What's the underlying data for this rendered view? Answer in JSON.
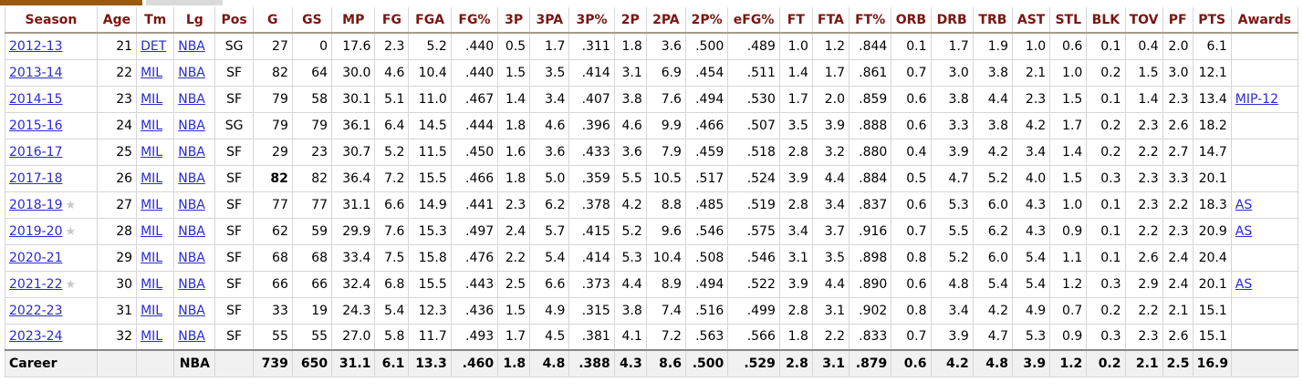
{
  "headers": [
    "Season",
    "Age",
    "Tm",
    "Lg",
    "Pos",
    "G",
    "GS",
    "MP",
    "FG",
    "FGA",
    "FG%",
    "3P",
    "3PA",
    "3P%",
    "2P",
    "2PA",
    "2P%",
    "eFG%",
    "FT",
    "FTA",
    "FT%",
    "ORB",
    "DRB",
    "TRB",
    "AST",
    "STL",
    "BLK",
    "TOV",
    "PF",
    "PTS",
    "Awards"
  ],
  "rows": [
    {
      "season": "2012-13",
      "star": false,
      "age": "21",
      "tm": "DET",
      "lg": "NBA",
      "pos": "SG",
      "stats": [
        "27",
        "0",
        "17.6",
        "2.3",
        "5.2",
        ".440",
        "0.5",
        "1.7",
        ".311",
        "1.8",
        "3.6",
        ".500",
        ".489",
        "1.0",
        "1.2",
        ".844",
        "0.1",
        "1.7",
        "1.9",
        "1.0",
        "0.6",
        "0.1",
        "0.4",
        "2.0",
        "6.1"
      ],
      "awards": ""
    },
    {
      "season": "2013-14",
      "star": false,
      "age": "22",
      "tm": "MIL",
      "lg": "NBA",
      "pos": "SF",
      "stats": [
        "82",
        "64",
        "30.0",
        "4.6",
        "10.4",
        ".440",
        "1.5",
        "3.5",
        ".414",
        "3.1",
        "6.9",
        ".454",
        ".511",
        "1.4",
        "1.7",
        ".861",
        "0.7",
        "3.0",
        "3.8",
        "2.1",
        "1.0",
        "0.2",
        "1.5",
        "3.0",
        "12.1"
      ],
      "awards": ""
    },
    {
      "season": "2014-15",
      "star": false,
      "age": "23",
      "tm": "MIL",
      "lg": "NBA",
      "pos": "SF",
      "stats": [
        "79",
        "58",
        "30.1",
        "5.1",
        "11.0",
        ".467",
        "1.4",
        "3.4",
        ".407",
        "3.8",
        "7.6",
        ".494",
        ".530",
        "1.7",
        "2.0",
        ".859",
        "0.6",
        "3.8",
        "4.4",
        "2.3",
        "1.5",
        "0.1",
        "1.4",
        "2.3",
        "13.4"
      ],
      "awards": "MIP-12"
    },
    {
      "season": "2015-16",
      "star": false,
      "age": "24",
      "tm": "MIL",
      "lg": "NBA",
      "pos": "SG",
      "stats": [
        "79",
        "79",
        "36.1",
        "6.4",
        "14.5",
        ".444",
        "1.8",
        "4.6",
        ".396",
        "4.6",
        "9.9",
        ".466",
        ".507",
        "3.5",
        "3.9",
        ".888",
        "0.6",
        "3.3",
        "3.8",
        "4.2",
        "1.7",
        "0.2",
        "2.3",
        "2.6",
        "18.2"
      ],
      "awards": ""
    },
    {
      "season": "2016-17",
      "star": false,
      "age": "25",
      "tm": "MIL",
      "lg": "NBA",
      "pos": "SF",
      "stats": [
        "29",
        "23",
        "30.7",
        "5.2",
        "11.5",
        ".450",
        "1.6",
        "3.6",
        ".433",
        "3.6",
        "7.9",
        ".459",
        ".518",
        "2.8",
        "3.2",
        ".880",
        "0.4",
        "3.9",
        "4.2",
        "3.4",
        "1.4",
        "0.2",
        "2.2",
        "2.7",
        "14.7"
      ],
      "awards": ""
    },
    {
      "season": "2017-18",
      "star": false,
      "age": "26",
      "tm": "MIL",
      "lg": "NBA",
      "pos": "SF",
      "boldG": true,
      "stats": [
        "82",
        "82",
        "36.4",
        "7.2",
        "15.5",
        ".466",
        "1.8",
        "5.0",
        ".359",
        "5.5",
        "10.5",
        ".517",
        ".524",
        "3.9",
        "4.4",
        ".884",
        "0.5",
        "4.7",
        "5.2",
        "4.0",
        "1.5",
        "0.3",
        "2.3",
        "3.3",
        "20.1"
      ],
      "awards": ""
    },
    {
      "season": "2018-19",
      "star": true,
      "age": "27",
      "tm": "MIL",
      "lg": "NBA",
      "pos": "SF",
      "stats": [
        "77",
        "77",
        "31.1",
        "6.6",
        "14.9",
        ".441",
        "2.3",
        "6.2",
        ".378",
        "4.2",
        "8.8",
        ".485",
        ".519",
        "2.8",
        "3.4",
        ".837",
        "0.6",
        "5.3",
        "6.0",
        "4.3",
        "1.0",
        "0.1",
        "2.3",
        "2.2",
        "18.3"
      ],
      "awards": "AS"
    },
    {
      "season": "2019-20",
      "star": true,
      "age": "28",
      "tm": "MIL",
      "lg": "NBA",
      "pos": "SF",
      "stats": [
        "62",
        "59",
        "29.9",
        "7.6",
        "15.3",
        ".497",
        "2.4",
        "5.7",
        ".415",
        "5.2",
        "9.6",
        ".546",
        ".575",
        "3.4",
        "3.7",
        ".916",
        "0.7",
        "5.5",
        "6.2",
        "4.3",
        "0.9",
        "0.1",
        "2.2",
        "2.3",
        "20.9"
      ],
      "awards": "AS"
    },
    {
      "season": "2020-21",
      "star": false,
      "age": "29",
      "tm": "MIL",
      "lg": "NBA",
      "pos": "SF",
      "stats": [
        "68",
        "68",
        "33.4",
        "7.5",
        "15.8",
        ".476",
        "2.2",
        "5.4",
        ".414",
        "5.3",
        "10.4",
        ".508",
        ".546",
        "3.1",
        "3.5",
        ".898",
        "0.8",
        "5.2",
        "6.0",
        "5.4",
        "1.1",
        "0.1",
        "2.6",
        "2.4",
        "20.4"
      ],
      "awards": ""
    },
    {
      "season": "2021-22",
      "star": true,
      "age": "30",
      "tm": "MIL",
      "lg": "NBA",
      "pos": "SF",
      "stats": [
        "66",
        "66",
        "32.4",
        "6.8",
        "15.5",
        ".443",
        "2.5",
        "6.6",
        ".373",
        "4.4",
        "8.9",
        ".494",
        ".522",
        "3.9",
        "4.4",
        ".890",
        "0.6",
        "4.8",
        "5.4",
        "5.4",
        "1.2",
        "0.3",
        "2.9",
        "2.4",
        "20.1"
      ],
      "awards": "AS"
    },
    {
      "season": "2022-23",
      "star": false,
      "age": "31",
      "tm": "MIL",
      "lg": "NBA",
      "pos": "SF",
      "stats": [
        "33",
        "19",
        "24.3",
        "5.4",
        "12.3",
        ".436",
        "1.5",
        "4.9",
        ".315",
        "3.8",
        "7.4",
        ".516",
        ".499",
        "2.8",
        "3.1",
        ".902",
        "0.8",
        "3.4",
        "4.2",
        "4.9",
        "0.7",
        "0.2",
        "2.2",
        "2.1",
        "15.1"
      ],
      "awards": ""
    },
    {
      "season": "2023-24",
      "star": false,
      "age": "32",
      "tm": "MIL",
      "lg": "NBA",
      "pos": "SF",
      "stats": [
        "55",
        "55",
        "27.0",
        "5.8",
        "11.7",
        ".493",
        "1.7",
        "4.5",
        ".381",
        "4.1",
        "7.2",
        ".563",
        ".566",
        "1.8",
        "2.2",
        ".833",
        "0.7",
        "3.9",
        "4.7",
        "5.3",
        "0.9",
        "0.3",
        "2.3",
        "2.6",
        "15.1"
      ],
      "awards": ""
    }
  ],
  "career": {
    "label": "Career",
    "lg": "NBA",
    "stats": [
      "739",
      "650",
      "31.1",
      "6.1",
      "13.3",
      ".460",
      "1.8",
      "4.8",
      ".388",
      "4.3",
      "8.6",
      ".500",
      ".529",
      "2.8",
      "3.1",
      ".879",
      "0.6",
      "4.2",
      "4.8",
      "3.9",
      "1.2",
      "0.2",
      "2.1",
      "2.5",
      "16.9"
    ]
  },
  "star_glyph": "★"
}
